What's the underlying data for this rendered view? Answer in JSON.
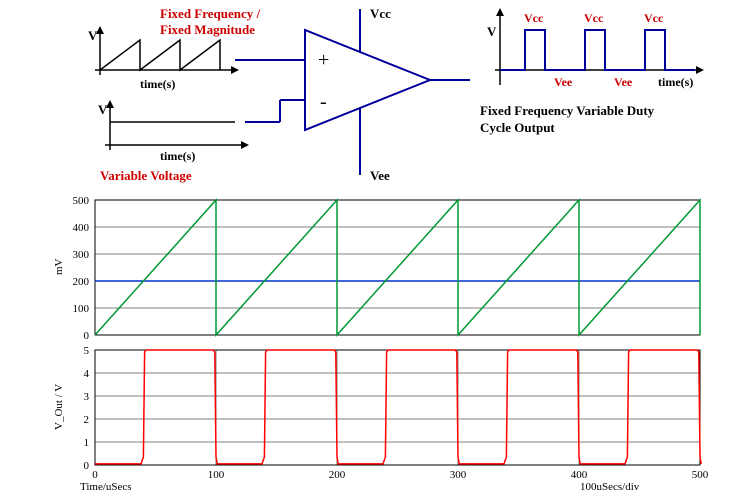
{
  "top_diagram": {
    "sawtooth_label_line1": "Fixed Frequency /",
    "sawtooth_label_line2": "Fixed Magnitude",
    "sawtooth_V": "V",
    "sawtooth_time": "time(s)",
    "sawtooth_color": "#000000",
    "flat_V": "V",
    "flat_time": "time(s)",
    "variable_voltage_label": "Variable Voltage",
    "opamp": {
      "plus": "+",
      "minus": "-",
      "vcc": "Vcc",
      "vee": "Vee",
      "stroke": "#000099",
      "width": 2
    },
    "output_wave": {
      "V": "V",
      "time": "time(s)",
      "vcc_labels": [
        "Vcc",
        "Vcc",
        "Vcc"
      ],
      "vee_labels": [
        "Vee",
        "Vee"
      ],
      "caption_line1": "Fixed Frequency Variable Duty",
      "caption_line2": "Cycle Output",
      "pulse_color": "#000099"
    },
    "label_color": "#cc0000",
    "label_fontsize": 13
  },
  "chart_mv": {
    "ylabel": "mV",
    "yticks": [
      0,
      100,
      200,
      300,
      400,
      500
    ],
    "xrange": [
      0,
      500
    ],
    "yrange": [
      0,
      500
    ],
    "grid_color": "#000000",
    "sawtooth_color": "#009933",
    "flat_line_color": "#0033cc",
    "flat_line_value": 200,
    "sawtooth_period": 100,
    "sawtooth_min": 0,
    "sawtooth_max": 500
  },
  "chart_vout": {
    "ylabel": "V_Out / V",
    "xlabel_left": "Time/uSecs",
    "xlabel_right": "100uSecs/div",
    "yticks": [
      0,
      1,
      2,
      3,
      4,
      5
    ],
    "xticks": [
      0,
      100,
      200,
      300,
      400,
      500
    ],
    "xrange": [
      0,
      500
    ],
    "yrange": [
      0,
      5
    ],
    "grid_color": "#000000",
    "pulse_color": "#ff0000",
    "pulse_high": 5,
    "pulse_low": 0.05,
    "period": 100,
    "rise_at": 40,
    "fall_at": 100
  },
  "fontsize_axis": 11,
  "fontsize_small": 12
}
